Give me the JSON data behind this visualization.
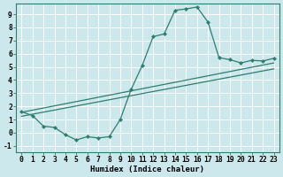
{
  "xlabel": "Humidex (Indice chaleur)",
  "bg_color": "#cce8ec",
  "line_color": "#2e7d6e",
  "grid_color": "#ffffff",
  "xlim": [
    -0.5,
    23.5
  ],
  "ylim": [
    -1.5,
    9.8
  ],
  "yticks": [
    -1,
    0,
    1,
    2,
    3,
    4,
    5,
    6,
    7,
    8,
    9
  ],
  "xticks": [
    0,
    1,
    2,
    3,
    4,
    5,
    6,
    7,
    8,
    9,
    10,
    11,
    12,
    13,
    14,
    15,
    16,
    17,
    18,
    19,
    20,
    21,
    22,
    23
  ],
  "curve_x": [
    0,
    1,
    2,
    3,
    4,
    5,
    6,
    7,
    8,
    9,
    10,
    11,
    12,
    13,
    14,
    15,
    16,
    17,
    18,
    19,
    20,
    21,
    22,
    23
  ],
  "curve_y": [
    1.6,
    1.3,
    0.5,
    0.4,
    -0.15,
    -0.55,
    -0.3,
    -0.4,
    -0.3,
    1.0,
    3.3,
    5.1,
    7.3,
    7.5,
    9.3,
    9.4,
    9.55,
    8.4,
    5.7,
    5.55,
    5.3,
    5.5,
    5.45,
    5.65
  ],
  "reg_line1_x": [
    0,
    23
  ],
  "reg_line1_y": [
    1.55,
    5.3
  ],
  "reg_line2_x": [
    0,
    23
  ],
  "reg_line2_y": [
    1.25,
    4.85
  ],
  "tick_fontsize": 5.8,
  "xlabel_fontsize": 6.5
}
